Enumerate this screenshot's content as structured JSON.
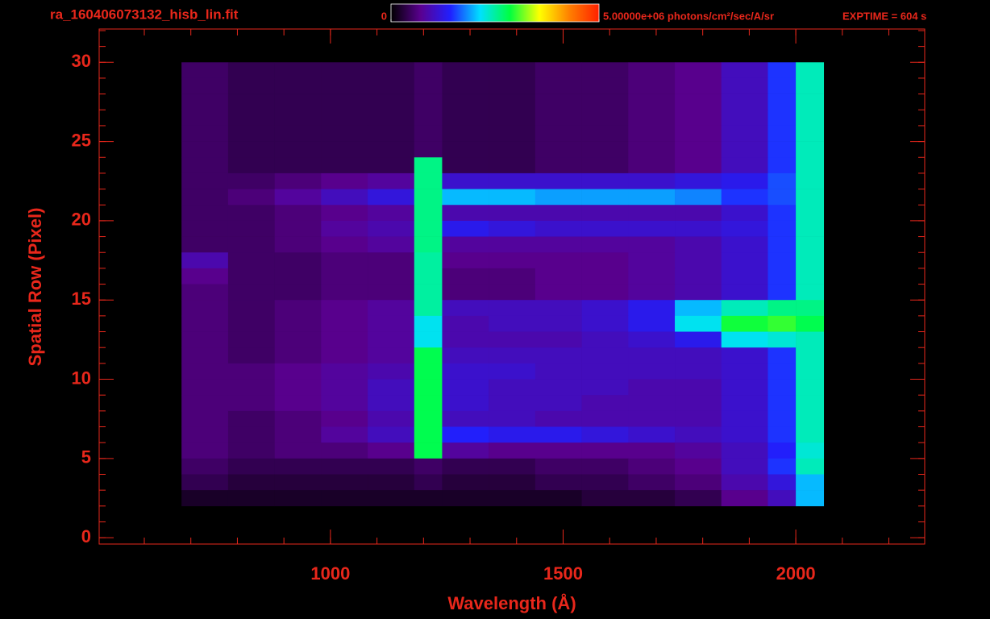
{
  "chart_data": {
    "type": "heatmap",
    "title": "ra_160406073132_hisb_lin.fit",
    "exposure": "EXPTIME = 604 s",
    "x_label": "Wavelength (Å)",
    "y_label": "Spatial Row (Pixel)",
    "xlim": [
      503,
      2277
    ],
    "xticks": [
      1000,
      1500,
      2000
    ],
    "xminorstep": 100,
    "ylim": [
      -0.4,
      32.1
    ],
    "yticks": [
      0,
      5,
      10,
      15,
      20,
      25,
      30
    ],
    "yminorstep": 1,
    "zlim": [
      0,
      5000000
    ],
    "zticks": [
      0,
      {
        "value": 5000000,
        "label": "5.00000e+06 photons/cm²/sec/A/sr"
      }
    ],
    "colorscale": [
      "#000000",
      "#5a0090",
      "#2020ff",
      "#00e0ff",
      "#00ff40",
      "#ffff00",
      "#ff8000",
      "#ff2000"
    ],
    "axis_color": "#e8271b",
    "bins": [
      680,
      780,
      880,
      980,
      1080,
      1180,
      1240,
      1340,
      1440,
      1540,
      1640,
      1740,
      1840,
      1940,
      2000,
      2060
    ],
    "rows": [
      30,
      29,
      28,
      27,
      26,
      25,
      24,
      23,
      22,
      21,
      20,
      19,
      18,
      17,
      16,
      15,
      14,
      13,
      12,
      11,
      10,
      9,
      8,
      7,
      6,
      5,
      4,
      3
    ],
    "z": [
      [
        500000.0,
        400000.0,
        400000.0,
        400000.0,
        400000.0,
        500000.0,
        400000.0,
        400000.0,
        500000.0,
        500000.0,
        600000.0,
        700000.0,
        1000000.0,
        1500000.0,
        2400000.0
      ],
      [
        500000.0,
        400000.0,
        400000.0,
        400000.0,
        400000.0,
        500000.0,
        400000.0,
        400000.0,
        500000.0,
        500000.0,
        600000.0,
        700000.0,
        1000000.0,
        1500000.0,
        2400000.0
      ],
      [
        500000.0,
        400000.0,
        400000.0,
        400000.0,
        400000.0,
        500000.0,
        400000.0,
        400000.0,
        500000.0,
        500000.0,
        600000.0,
        700000.0,
        1000000.0,
        1500000.0,
        2400000.0
      ],
      [
        500000.0,
        400000.0,
        400000.0,
        400000.0,
        400000.0,
        500000.0,
        400000.0,
        400000.0,
        500000.0,
        500000.0,
        600000.0,
        700000.0,
        1000000.0,
        1500000.0,
        2400000.0
      ],
      [
        500000.0,
        400000.0,
        400000.0,
        400000.0,
        400000.0,
        500000.0,
        400000.0,
        400000.0,
        500000.0,
        500000.0,
        600000.0,
        700000.0,
        1000000.0,
        1500000.0,
        2400000.0
      ],
      [
        500000.0,
        400000.0,
        400000.0,
        400000.0,
        400000.0,
        500000.0,
        400000.0,
        400000.0,
        500000.0,
        500000.0,
        600000.0,
        700000.0,
        1000000.0,
        1500000.0,
        2400000.0
      ],
      [
        500000.0,
        400000.0,
        400000.0,
        400000.0,
        400000.0,
        2600000.0,
        400000.0,
        400000.0,
        500000.0,
        500000.0,
        600000.0,
        700000.0,
        1000000.0,
        1500000.0,
        2400000.0
      ],
      [
        500000.0,
        500000.0,
        600000.0,
        700000.0,
        800000.0,
        2600000.0,
        1100000.0,
        1100000.0,
        1100000.0,
        1100000.0,
        1100000.0,
        1200000.0,
        1300000.0,
        1600000.0,
        2400000.0
      ],
      [
        500000.0,
        600000.0,
        800000.0,
        1000000.0,
        1200000.0,
        2600000.0,
        2000000.0,
        2000000.0,
        1900000.0,
        1900000.0,
        1900000.0,
        1800000.0,
        1500000.0,
        1600000.0,
        2400000.0
      ],
      [
        500000.0,
        500000.0,
        600000.0,
        700000.0,
        800000.0,
        2600000.0,
        900000.0,
        900000.0,
        900000.0,
        900000.0,
        900000.0,
        900000.0,
        1100000.0,
        1500000.0,
        2400000.0
      ],
      [
        500000.0,
        500000.0,
        600000.0,
        800000.0,
        900000.0,
        2600000.0,
        1300000.0,
        1200000.0,
        1100000.0,
        1100000.0,
        1100000.0,
        1100000.0,
        1200000.0,
        1500000.0,
        2400000.0
      ],
      [
        500000.0,
        500000.0,
        600000.0,
        700000.0,
        800000.0,
        2600000.0,
        800000.0,
        800000.0,
        800000.0,
        800000.0,
        800000.0,
        900000.0,
        1100000.0,
        1500000.0,
        2400000.0
      ],
      [
        900000.0,
        500000.0,
        500000.0,
        600000.0,
        600000.0,
        2500000.0,
        700000.0,
        700000.0,
        700000.0,
        700000.0,
        800000.0,
        900000.0,
        1100000.0,
        1500000.0,
        2400000.0
      ],
      [
        700000.0,
        500000.0,
        500000.0,
        600000.0,
        600000.0,
        2500000.0,
        600000.0,
        600000.0,
        700000.0,
        700000.0,
        800000.0,
        900000.0,
        1100000.0,
        1500000.0,
        2400000.0
      ],
      [
        600000.0,
        500000.0,
        500000.0,
        600000.0,
        600000.0,
        2500000.0,
        600000.0,
        600000.0,
        700000.0,
        700000.0,
        800000.0,
        900000.0,
        1100000.0,
        1500000.0,
        2400000.0
      ],
      [
        600000.0,
        500000.0,
        600000.0,
        700000.0,
        800000.0,
        2500000.0,
        1000000.0,
        1000000.0,
        1000000.0,
        1100000.0,
        1300000.0,
        2000000.0,
        2400000.0,
        2600000.0,
        2600000.0
      ],
      [
        600000.0,
        500000.0,
        600000.0,
        700000.0,
        800000.0,
        2200000.0,
        900000.0,
        1000000.0,
        1000000.0,
        1100000.0,
        1300000.0,
        2200000.0,
        2900000.0,
        3000000.0,
        2800000.0
      ],
      [
        600000.0,
        500000.0,
        600000.0,
        700000.0,
        800000.0,
        2200000.0,
        900000.0,
        900000.0,
        900000.0,
        1000000.0,
        1100000.0,
        1300000.0,
        2200000.0,
        2300000.0,
        2400000.0
      ],
      [
        600000.0,
        500000.0,
        600000.0,
        700000.0,
        800000.0,
        2800000.0,
        1000000.0,
        1000000.0,
        1000000.0,
        1000000.0,
        1000000.0,
        1000000.0,
        1100000.0,
        1500000.0,
        2400000.0
      ],
      [
        600000.0,
        600000.0,
        700000.0,
        800000.0,
        900000.0,
        2800000.0,
        1100000.0,
        1100000.0,
        1000000.0,
        1000000.0,
        1000000.0,
        1000000.0,
        1100000.0,
        1500000.0,
        2400000.0
      ],
      [
        600000.0,
        600000.0,
        700000.0,
        800000.0,
        1000000.0,
        2800000.0,
        1100000.0,
        1000000.0,
        1000000.0,
        1000000.0,
        900000.0,
        900000.0,
        1100000.0,
        1500000.0,
        2400000.0
      ],
      [
        600000.0,
        600000.0,
        700000.0,
        800000.0,
        1000000.0,
        2800000.0,
        1100000.0,
        1000000.0,
        1000000.0,
        900000.0,
        900000.0,
        900000.0,
        1100000.0,
        1500000.0,
        2400000.0
      ],
      [
        600000.0,
        500000.0,
        600000.0,
        700000.0,
        900000.0,
        2800000.0,
        1000000.0,
        1000000.0,
        900000.0,
        900000.0,
        900000.0,
        900000.0,
        1100000.0,
        1500000.0,
        2400000.0
      ],
      [
        600000.0,
        500000.0,
        600000.0,
        800000.0,
        1000000.0,
        2800000.0,
        1400000.0,
        1300000.0,
        1300000.0,
        1200000.0,
        1100000.0,
        1000000.0,
        1100000.0,
        1500000.0,
        2400000.0
      ],
      [
        600000.0,
        500000.0,
        600000.0,
        600000.0,
        700000.0,
        2800000.0,
        800000.0,
        700000.0,
        700000.0,
        700000.0,
        700000.0,
        800000.0,
        1000000.0,
        1400000.0,
        2300000.0
      ],
      [
        500000.0,
        400000.0,
        400000.0,
        400000.0,
        400000.0,
        500000.0,
        400000.0,
        400000.0,
        500000.0,
        500000.0,
        600000.0,
        700000.0,
        1000000.0,
        1500000.0,
        2400000.0
      ],
      [
        400000.0,
        300000.0,
        300000.0,
        300000.0,
        300000.0,
        400000.0,
        300000.0,
        300000.0,
        400000.0,
        400000.0,
        500000.0,
        600000.0,
        900000.0,
        1200000.0,
        2000000.0
      ],
      [
        200000.0,
        200000.0,
        200000.0,
        200000.0,
        200000.0,
        200000.0,
        200000.0,
        200000.0,
        200000.0,
        300000.0,
        300000.0,
        400000.0,
        700000.0,
        1000000.0,
        2000000.0
      ]
    ]
  }
}
